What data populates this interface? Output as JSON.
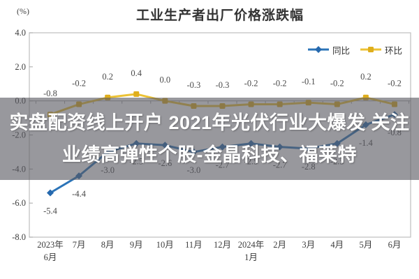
{
  "banner": {
    "line1": "实盘配资线上开户 2021年光伏行业大爆发 关注",
    "line2": "业绩高弹性个股-金晶科技、福莱特",
    "bg_color": "rgba(88,88,97,0.62)",
    "text_color": "#ffffff"
  },
  "chart_data": {
    "type": "line",
    "title": "工业生产者出厂价格涨跌幅",
    "unit_label": "(%)",
    "categories": [
      "2023年\n6月",
      "7月",
      "8月",
      "9月",
      "10月",
      "11月",
      "12月",
      "2024年\n1月",
      "2月",
      "3月",
      "4月",
      "5月",
      "6月"
    ],
    "series": [
      {
        "name": "同比",
        "marker": "diamond",
        "line_color": "#2B74B8",
        "marker_color": "#2669AE",
        "label_side": "below",
        "values": [
          -5.4,
          -4.4,
          -3.0,
          -2.5,
          -2.6,
          -3.0,
          -2.7,
          -2.5,
          -2.7,
          -2.8,
          -2.5,
          -1.4,
          -0.8
        ]
      },
      {
        "name": "环比",
        "marker": "square",
        "line_color": "#ECC235",
        "marker_color": "#DFAE1C",
        "label_side": "above",
        "values": [
          -0.8,
          -0.2,
          0.2,
          0.4,
          0.0,
          -0.3,
          -0.3,
          -0.2,
          -0.2,
          -0.1,
          -0.2,
          0.2,
          -0.2
        ]
      }
    ],
    "ylim": [
      -8.0,
      4.0
    ],
    "ytick_step": 2.0,
    "ytick_labels": [
      "4.0",
      "2.0",
      "0.0",
      "-2.0",
      "-4.0",
      "-6.0",
      "-8.0"
    ],
    "grid": "zero-baseline-only",
    "legend_position": "top-right-inside",
    "colors": {
      "axis_text": "#3c3c3c",
      "data_label_text": "#4a4a4a",
      "border": "#bfbfbf",
      "zero_line": "#a6a6a6"
    }
  }
}
